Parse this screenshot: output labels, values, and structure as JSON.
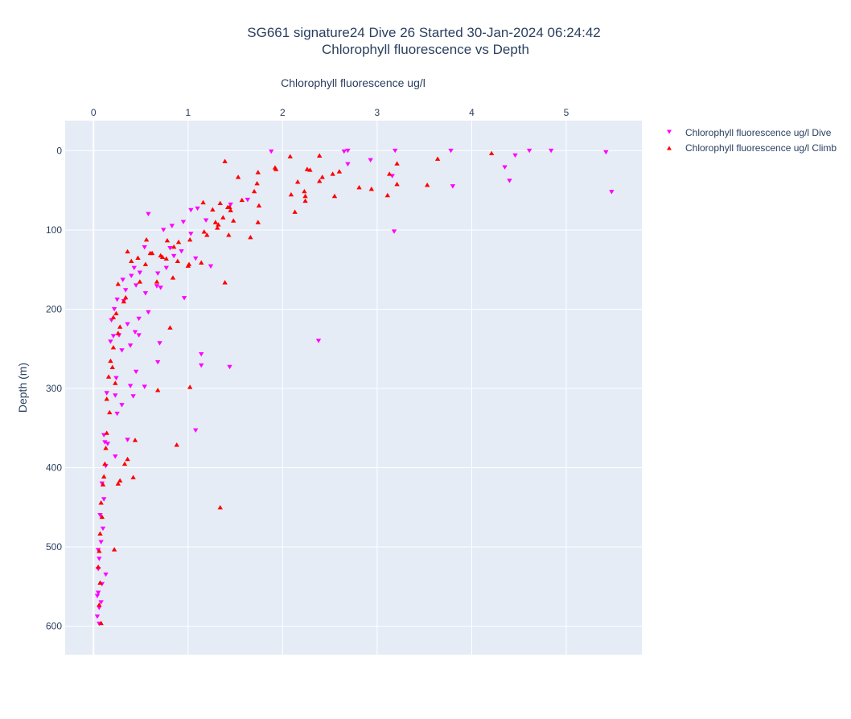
{
  "chart_data": {
    "type": "scatter",
    "title": "SG661 signature24 Dive 26 Started 30-Jan-2024 06:24:42",
    "subtitle": "Chlorophyll fluorescence vs Depth",
    "xlabel": "Chlorophyll fluorescence ug/l",
    "ylabel": "Depth (m)",
    "x_axis_position": "top",
    "y_axis_reversed": true,
    "xlim": [
      -0.3,
      5.8
    ],
    "ylim": [
      -38,
      636
    ],
    "x_ticks": [
      0,
      1,
      2,
      3,
      4,
      5
    ],
    "x_tick_labels": [
      "0",
      "1",
      "2",
      "3",
      "4",
      "5"
    ],
    "y_ticks": [
      0,
      100,
      200,
      300,
      400,
      500,
      600
    ],
    "y_tick_labels": [
      "0",
      "100",
      "200",
      "300",
      "400",
      "500",
      "600"
    ],
    "grid": true,
    "legend_position": "top-right",
    "background": "#e5ecf6",
    "series": [
      {
        "name": "Chlorophyll fluorescence ug/l Dive",
        "marker": "triangle-down",
        "color": "#ff00ff",
        "x": [
          1.88,
          2.65,
          2.69,
          3.19,
          3.78,
          4.61,
          4.84,
          5.42,
          4.46,
          2.93,
          2.69,
          4.35,
          3.16,
          4.4,
          3.8,
          5.48,
          3.18,
          1.63,
          1.45,
          1.19,
          1.1,
          0.58,
          1.03,
          0.95,
          0.83,
          1.03,
          0.74,
          0.81,
          0.54,
          0.93,
          0.85,
          1.08,
          0.77,
          0.43,
          0.49,
          0.68,
          1.24,
          0.4,
          0.67,
          0.31,
          0.45,
          0.71,
          0.34,
          0.55,
          0.25,
          0.32,
          0.96,
          0.22,
          0.58,
          0.48,
          0.19,
          0.36,
          0.27,
          0.44,
          0.18,
          0.21,
          0.48,
          0.39,
          0.7,
          1.14,
          0.3,
          1.14,
          0.68,
          0.45,
          0.24,
          0.54,
          0.39,
          0.14,
          0.23,
          0.42,
          0.3,
          0.25,
          0.11,
          1.08,
          0.12,
          0.36,
          0.15,
          0.23,
          0.13,
          0.09,
          0.11,
          0.07,
          0.1,
          0.08,
          0.06,
          0.13,
          0.09,
          0.05,
          0.08,
          0.06,
          0.04,
          0.06,
          0.05,
          0.04,
          0.05,
          2.38,
          1.44
        ],
        "y": [
          1,
          1,
          0,
          0,
          0,
          0,
          0,
          2,
          6,
          12,
          17,
          21,
          32,
          38,
          45,
          52,
          102,
          62,
          68,
          88,
          73,
          80,
          75,
          90,
          95,
          105,
          100,
          123,
          122,
          127,
          133,
          136,
          148,
          148,
          154,
          155,
          146,
          158,
          171,
          163,
          170,
          173,
          176,
          180,
          188,
          190,
          186,
          200,
          204,
          212,
          214,
          219,
          233,
          229,
          241,
          234,
          233,
          246,
          243,
          257,
          252,
          271,
          267,
          279,
          287,
          298,
          297,
          306,
          309,
          310,
          321,
          332,
          359,
          353,
          368,
          365,
          370,
          386,
          398,
          420,
          440,
          460,
          477,
          494,
          515,
          535,
          547,
          558,
          570,
          577,
          588,
          597,
          528,
          562,
          504,
          240,
          273
        ]
      },
      {
        "name": "Chlorophyll fluorescence ug/l Climb",
        "marker": "triangle-up",
        "color": "#ff0000",
        "x": [
          1.39,
          2.08,
          2.39,
          3.64,
          4.21,
          1.92,
          1.93,
          2.6,
          2.29,
          2.26,
          1.74,
          3.21,
          2.53,
          2.42,
          2.39,
          1.53,
          3.13,
          2.16,
          1.73,
          1.7,
          2.81,
          3.53,
          3.21,
          2.23,
          2.09,
          2.94,
          3.11,
          2.24,
          2.24,
          1.57,
          2.55,
          1.75,
          1.34,
          1.42,
          1.16,
          1.26,
          2.13,
          1.45,
          1.44,
          1.37,
          1.29,
          1.74,
          1.32,
          1.48,
          1.31,
          1.66,
          1.17,
          1.43,
          1.02,
          0.9,
          0.85,
          1.2,
          0.89,
          1.14,
          0.78,
          0.77,
          1.0,
          0.71,
          0.55,
          0.73,
          0.49,
          0.62,
          0.67,
          0.84,
          1.01,
          0.47,
          1.39,
          0.36,
          0.6,
          0.56,
          0.4,
          0.26,
          0.34,
          0.32,
          0.24,
          0.21,
          0.28,
          0.26,
          0.21,
          0.18,
          0.2,
          0.16,
          0.23,
          0.14,
          0.17,
          0.14,
          0.13,
          0.12,
          0.11,
          0.1,
          0.08,
          0.09,
          0.07,
          0.06,
          0.05,
          0.07,
          0.06,
          0.08,
          0.68,
          1.02,
          0.81,
          0.88,
          0.44,
          0.42,
          0.22,
          0.36,
          0.33,
          0.28,
          0.26,
          1.34
        ],
        "y": [
          13,
          7,
          6,
          10,
          3,
          21,
          23,
          26,
          24,
          23,
          27,
          16,
          29,
          33,
          38,
          33,
          29,
          39,
          41,
          51,
          46,
          43,
          42,
          51,
          55,
          48,
          56,
          57,
          63,
          62,
          57,
          69,
          66,
          71,
          65,
          74,
          77,
          75,
          71,
          84,
          90,
          90,
          93,
          88,
          97,
          109,
          102,
          106,
          112,
          115,
          121,
          106,
          139,
          141,
          113,
          136,
          145,
          132,
          143,
          134,
          165,
          129,
          165,
          160,
          143,
          135,
          166,
          127,
          129,
          112,
          139,
          168,
          185,
          190,
          205,
          210,
          222,
          230,
          248,
          265,
          273,
          285,
          293,
          313,
          330,
          356,
          375,
          395,
          411,
          421,
          444,
          462,
          483,
          505,
          525,
          545,
          573,
          596,
          302,
          298,
          223,
          371,
          365,
          412,
          503,
          389,
          395,
          416,
          420,
          450
        ]
      }
    ]
  }
}
